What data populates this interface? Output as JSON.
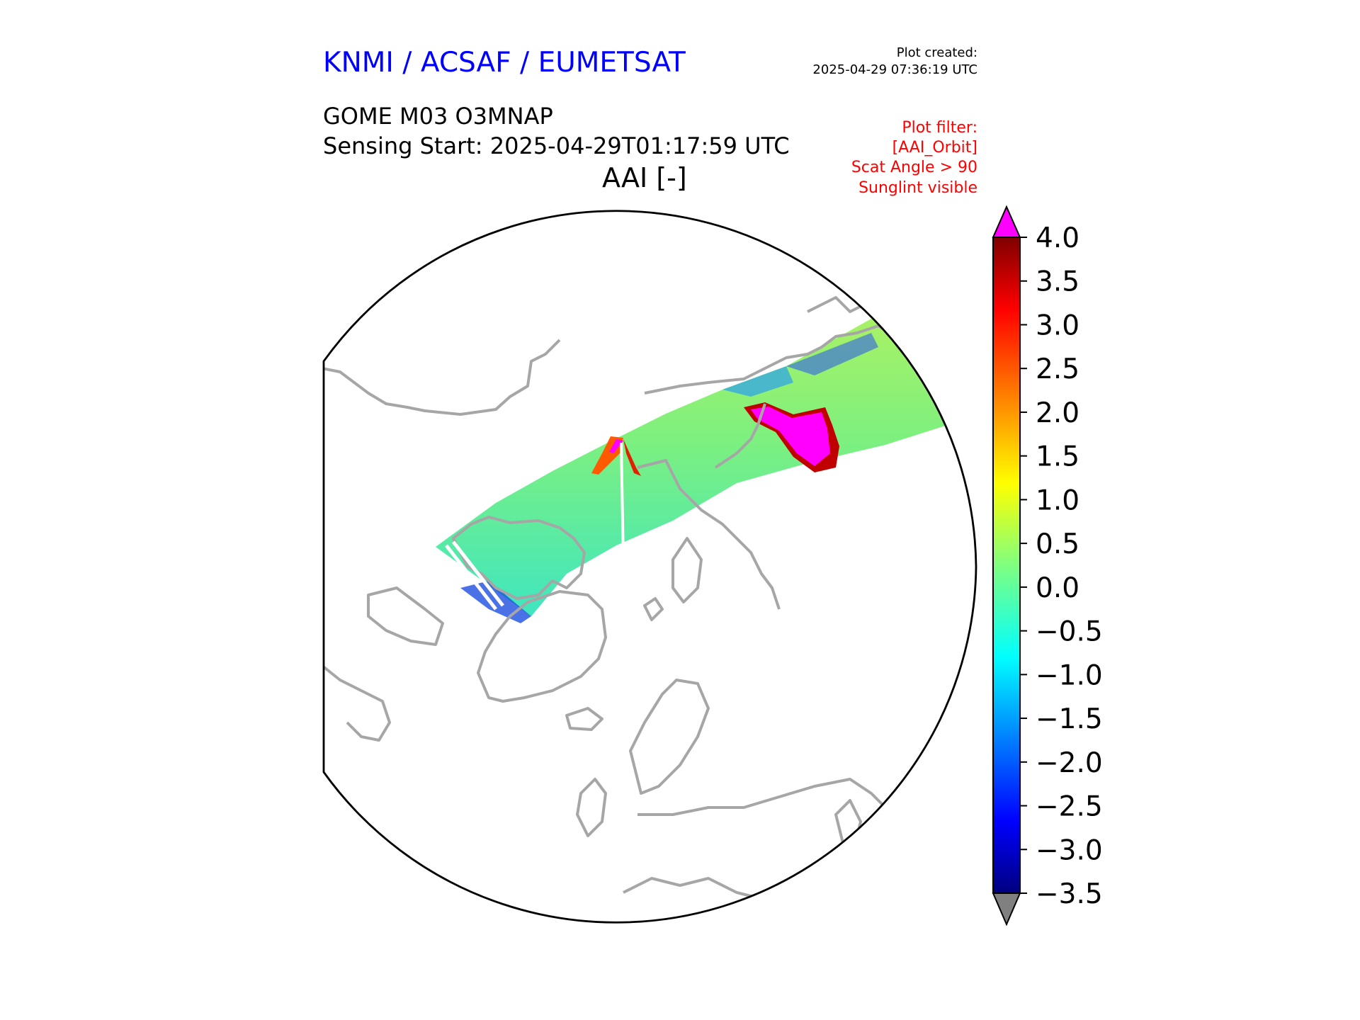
{
  "header": {
    "org_title": "KNMI / ACSAF / EUMETSAT",
    "plot_created_label": "Plot created:",
    "plot_created_time": "2025-04-29 07:36:19 UTC",
    "product_title": "GOME M03 O3MNAP",
    "sensing_start": "Sensing Start: 2025-04-29T01:17:59 UTC",
    "map_title": "AAI [-]"
  },
  "plot_filter": [
    "Plot filter:",
    "[AAI_Orbit]",
    "Scat Angle > 90",
    "Sunglint visible"
  ],
  "colors": {
    "title_blue": "#0000ff",
    "filter_red": "#ff0000",
    "coastline_gray": "#a6a6a6",
    "over_max": "#ff00ff",
    "under_min": "#808080"
  },
  "colorbar": {
    "min": -3.5,
    "max": 4.0,
    "extend": "both",
    "tick_labels": [
      "4.0",
      "3.5",
      "3.0",
      "2.5",
      "2.0",
      "1.5",
      "1.0",
      "0.5",
      "0.0",
      "−0.5",
      "−1.0",
      "−1.5",
      "−2.0",
      "−2.5",
      "−3.0",
      "−3.5"
    ],
    "colormap": "jet"
  },
  "map": {
    "projection": "north-polar orthographic",
    "swath": "GOME-2 Metop-C orbit swath crossing the Arctic",
    "features": [
      {
        "name": "elevated-aai-plume-siberia",
        "aai": "above 4.0"
      },
      {
        "name": "elevated-aai-near-pole",
        "aai": "2.0 to above 4.0"
      }
    ]
  }
}
